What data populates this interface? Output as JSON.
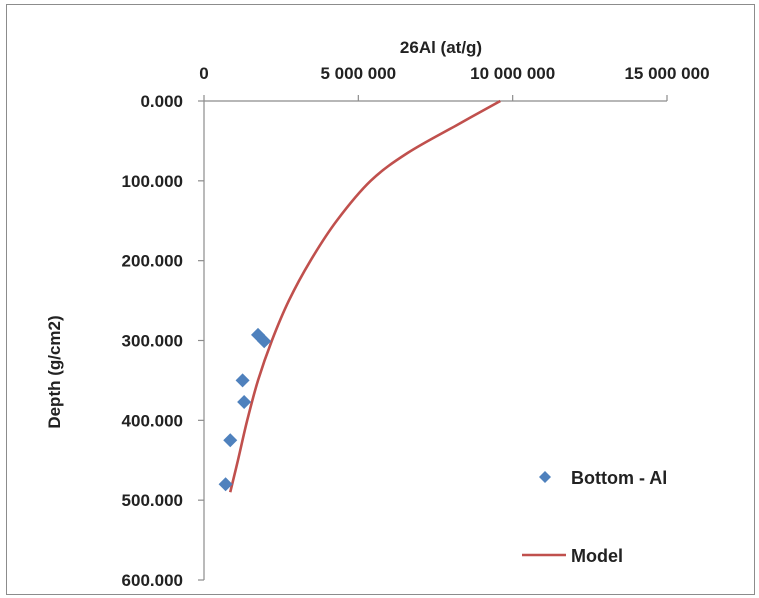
{
  "chart_data": {
    "type": "scatter",
    "title": "",
    "xlabel": "26Al (at/g)",
    "ylabel": "Depth (g/cm2)",
    "x_axis_position": "top",
    "y_axis_reversed": true,
    "xlim": [
      0,
      15000000
    ],
    "ylim": [
      0,
      600
    ],
    "x_ticks": [
      0,
      5000000,
      10000000,
      15000000
    ],
    "x_tick_labels": [
      "0",
      "5 000 000",
      "10 000 000",
      "15 000 000"
    ],
    "y_ticks": [
      0,
      100,
      200,
      300,
      400,
      500,
      600
    ],
    "y_tick_labels": [
      "0.000",
      "100.000",
      "200.000",
      "300.000",
      "400.000",
      "500.000",
      "600.000"
    ],
    "grid": false,
    "legend_position": "bottom-right",
    "series": [
      {
        "name": "Bottom - Al",
        "kind": "scatter",
        "marker": "diamond",
        "color": "#4f81bd",
        "points": [
          {
            "x": 1750000,
            "y": 293
          },
          {
            "x": 1950000,
            "y": 301
          },
          {
            "x": 1250000,
            "y": 350
          },
          {
            "x": 1300000,
            "y": 377
          },
          {
            "x": 850000,
            "y": 425
          },
          {
            "x": 700000,
            "y": 480
          }
        ]
      },
      {
        "name": "Model",
        "kind": "line",
        "color": "#c0504d",
        "points": [
          {
            "x": 9600000,
            "y": 0
          },
          {
            "x": 8200000,
            "y": 30
          },
          {
            "x": 6600000,
            "y": 65
          },
          {
            "x": 5400000,
            "y": 100
          },
          {
            "x": 4300000,
            "y": 150
          },
          {
            "x": 3450000,
            "y": 200
          },
          {
            "x": 2750000,
            "y": 250
          },
          {
            "x": 2200000,
            "y": 300
          },
          {
            "x": 1750000,
            "y": 350
          },
          {
            "x": 1400000,
            "y": 400
          },
          {
            "x": 1100000,
            "y": 450
          },
          {
            "x": 850000,
            "y": 490
          }
        ]
      }
    ]
  }
}
